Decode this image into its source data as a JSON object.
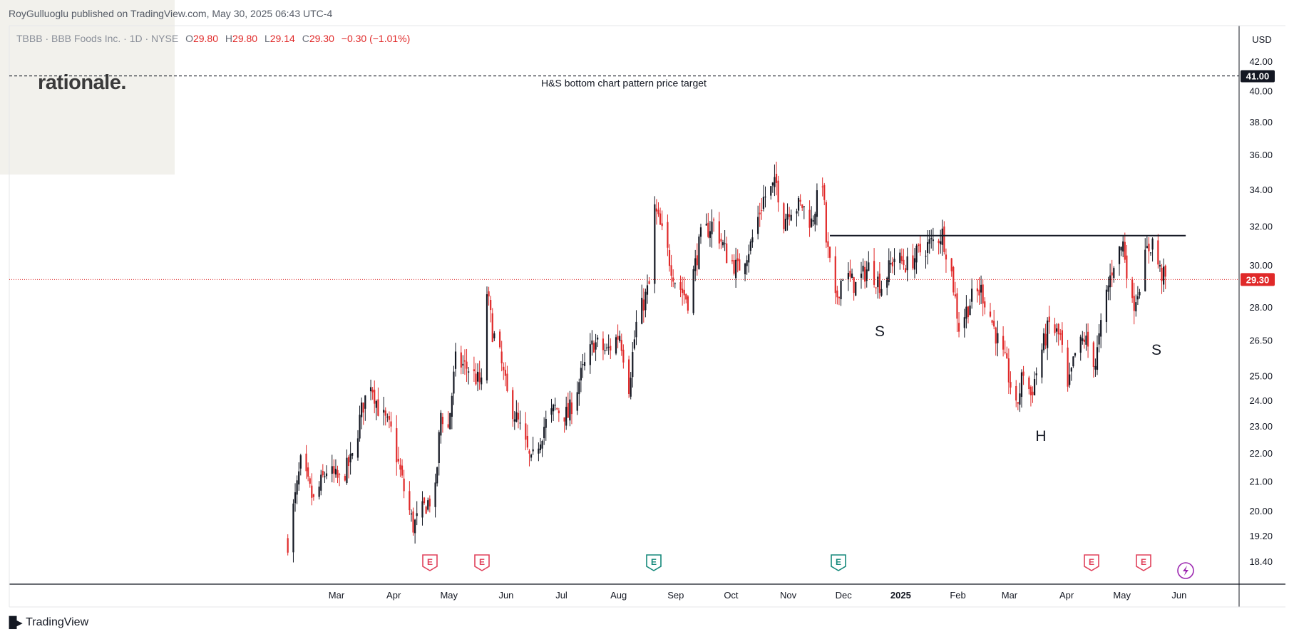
{
  "publisher_line": "RoyGulluoglu published on TradingView.com, May 30, 2025 06:43 UTC-4",
  "legend": {
    "symbol": "TBBB · BBB Foods Inc. · 1D · NYSE",
    "o_label": "O",
    "o": "29.80",
    "h_label": "H",
    "h": "29.80",
    "l_label": "L",
    "l": "29.14",
    "c_label": "C",
    "c": "29.30",
    "change": "−0.30 (−1.01%)"
  },
  "logo": "rationale.",
  "currency": "USD",
  "footer": "TradingView",
  "colors": {
    "up": "#131722",
    "down": "#e02929",
    "last_price": "#e02929"
  },
  "chart_data": {
    "type": "candlestick",
    "symbol": "TBBB",
    "y_scale": "log",
    "ylim": [
      18.1,
      42.7
    ],
    "y_ticks": [
      "18.40",
      "19.20",
      "20.00",
      "21.00",
      "22.00",
      "23.00",
      "24.00",
      "25.00",
      "26.50",
      "28.00",
      "30.00",
      "32.00",
      "34.00",
      "36.00",
      "38.00",
      "40.00",
      "42.00"
    ],
    "x_ticks": [
      "Mar",
      "Apr",
      "May",
      "Jun",
      "Jul",
      "Aug",
      "Sep",
      "Oct",
      "Nov",
      "Dec",
      "2025",
      "Feb",
      "Mar",
      "Apr",
      "May",
      "Jun"
    ],
    "bold_x_tick": "2025",
    "target_label": "41.00",
    "last_label": "29.30",
    "target_price": 41.0,
    "neckline_price": 31.5,
    "last_price": 29.3,
    "annotations": [
      "H&S bottom chart pattern price target",
      "S",
      "H",
      "S"
    ],
    "earnings_markers": [
      {
        "label": "E",
        "status": "miss"
      },
      {
        "label": "E",
        "status": "miss"
      },
      {
        "label": "E",
        "status": "beat"
      },
      {
        "label": "E",
        "status": "beat"
      },
      {
        "label": "E",
        "status": "miss"
      },
      {
        "label": "E",
        "status": "miss"
      }
    ],
    "event_icon": "lightning-icon",
    "price_path": [
      [
        "2024-02-09",
        19.0
      ],
      [
        "2024-02-14",
        20.8
      ],
      [
        "2024-02-16",
        21.6
      ],
      [
        "2024-02-23",
        20.3
      ],
      [
        "2024-03-01",
        21.4
      ],
      [
        "2024-03-08",
        21.0
      ],
      [
        "2024-03-15",
        21.8
      ],
      [
        "2024-03-20",
        23.6
      ],
      [
        "2024-03-25",
        24.8
      ],
      [
        "2024-03-29",
        23.7
      ],
      [
        "2024-04-05",
        22.8
      ],
      [
        "2024-04-12",
        20.7
      ],
      [
        "2024-04-17",
        19.5
      ],
      [
        "2024-04-24",
        20.2
      ],
      [
        "2024-04-29",
        20.6
      ],
      [
        "2024-05-02",
        23.5
      ],
      [
        "2024-05-06",
        22.9
      ],
      [
        "2024-05-10",
        25.6
      ],
      [
        "2024-05-17",
        25.3
      ],
      [
        "2024-05-24",
        24.6
      ],
      [
        "2024-05-27",
        28.7
      ],
      [
        "2024-05-30",
        26.9
      ],
      [
        "2024-06-03",
        25.8
      ],
      [
        "2024-06-07",
        24.2
      ],
      [
        "2024-06-13",
        23.1
      ],
      [
        "2024-06-20",
        21.6
      ],
      [
        "2024-06-27",
        23.0
      ],
      [
        "2024-07-03",
        23.7
      ],
      [
        "2024-07-10",
        23.4
      ],
      [
        "2024-07-17",
        25.0
      ],
      [
        "2024-07-24",
        26.4
      ],
      [
        "2024-07-31",
        26.0
      ],
      [
        "2024-08-07",
        26.8
      ],
      [
        "2024-08-12",
        24.6
      ],
      [
        "2024-08-16",
        27.2
      ],
      [
        "2024-08-23",
        29.0
      ],
      [
        "2024-08-26",
        32.9
      ],
      [
        "2024-08-30",
        31.6
      ],
      [
        "2024-09-06",
        29.3
      ],
      [
        "2024-09-13",
        28.3
      ],
      [
        "2024-09-20",
        31.4
      ],
      [
        "2024-09-27",
        32.2
      ],
      [
        "2024-10-04",
        30.5
      ],
      [
        "2024-10-10",
        29.8
      ],
      [
        "2024-10-17",
        31.0
      ],
      [
        "2024-10-24",
        33.5
      ],
      [
        "2024-10-31",
        34.3
      ],
      [
        "2024-11-04",
        32.3
      ],
      [
        "2024-11-07",
        33.0
      ],
      [
        "2024-11-14",
        33.1
      ],
      [
        "2024-11-19",
        32.2
      ],
      [
        "2024-11-25",
        34.6
      ],
      [
        "2024-11-27",
        31.2
      ],
      [
        "2024-12-02",
        28.2
      ],
      [
        "2024-12-06",
        29.6
      ],
      [
        "2024-12-13",
        29.0
      ],
      [
        "2024-12-20",
        29.9
      ],
      [
        "2024-12-27",
        29.0
      ],
      [
        "2025-01-03",
        30.4
      ],
      [
        "2025-01-10",
        30.0
      ],
      [
        "2025-01-17",
        30.7
      ],
      [
        "2025-01-24",
        31.2
      ],
      [
        "2025-01-29",
        31.6
      ],
      [
        "2025-02-03",
        29.6
      ],
      [
        "2025-02-07",
        27.1
      ],
      [
        "2025-02-14",
        28.4
      ],
      [
        "2025-02-19",
        28.8
      ],
      [
        "2025-02-24",
        27.6
      ],
      [
        "2025-02-28",
        26.5
      ],
      [
        "2025-03-05",
        25.3
      ],
      [
        "2025-03-10",
        23.6
      ],
      [
        "2025-03-14",
        25.2
      ],
      [
        "2025-03-18",
        24.2
      ],
      [
        "2025-03-24",
        26.1
      ],
      [
        "2025-03-28",
        27.2
      ],
      [
        "2025-04-03",
        26.6
      ],
      [
        "2025-04-07",
        24.3
      ],
      [
        "2025-04-11",
        25.9
      ],
      [
        "2025-04-16",
        26.6
      ],
      [
        "2025-04-22",
        25.5
      ],
      [
        "2025-04-28",
        28.6
      ],
      [
        "2025-05-02",
        30.2
      ],
      [
        "2025-05-07",
        31.1
      ],
      [
        "2025-05-12",
        28.0
      ],
      [
        "2025-05-15",
        28.8
      ],
      [
        "2025-05-20",
        30.7
      ],
      [
        "2025-05-23",
        31.2
      ],
      [
        "2025-05-27",
        29.7
      ],
      [
        "2025-05-30",
        29.3
      ]
    ]
  }
}
